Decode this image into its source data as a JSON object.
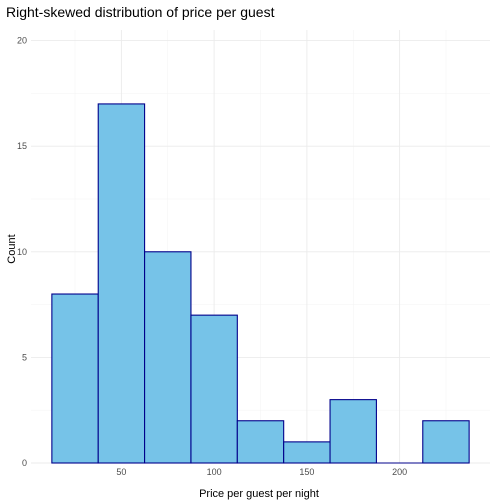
{
  "chart_data": {
    "type": "bar",
    "title": "Right-skewed distribution of price per guest",
    "xlabel": "Price per guest per night",
    "ylabel": "Count",
    "bins": [
      {
        "x_start": 12.5,
        "x_end": 37.5,
        "count": 8
      },
      {
        "x_start": 37.5,
        "x_end": 62.5,
        "count": 17
      },
      {
        "x_start": 62.5,
        "x_end": 87.5,
        "count": 10
      },
      {
        "x_start": 87.5,
        "x_end": 112.5,
        "count": 7
      },
      {
        "x_start": 112.5,
        "x_end": 137.5,
        "count": 2
      },
      {
        "x_start": 137.5,
        "x_end": 162.5,
        "count": 1
      },
      {
        "x_start": 162.5,
        "x_end": 187.5,
        "count": 3
      },
      {
        "x_start": 187.5,
        "x_end": 212.5,
        "count": 0
      },
      {
        "x_start": 212.5,
        "x_end": 237.5,
        "count": 2
      }
    ],
    "xlim": [
      1.25,
      248.75
    ],
    "ylim": [
      0,
      20.5
    ],
    "x_ticks": [
      50,
      100,
      150,
      200
    ],
    "y_ticks": [
      0,
      5,
      10,
      15,
      20
    ],
    "grid": true,
    "legend": "none",
    "colors": {
      "bar_fill": "#76c3e8",
      "bar_outline": "#00008b",
      "grid_major": "#ebebeb",
      "grid_minor": "#f3f3f3"
    }
  }
}
